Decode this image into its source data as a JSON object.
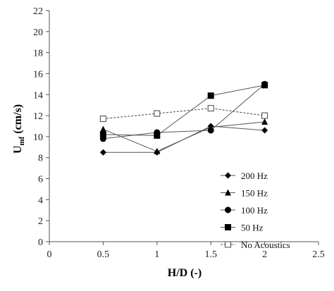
{
  "chart_data": {
    "type": "line",
    "xlabel": "H/D (-)",
    "ylabel_main": "U",
    "ylabel_sub": "mf",
    "ylabel_rest": " (cm/s)",
    "xlim": [
      0,
      2.5
    ],
    "ylim": [
      0,
      22
    ],
    "xticks": [
      0,
      0.5,
      1,
      1.5,
      2,
      2.5
    ],
    "xtick_labels": [
      "0",
      "0.5",
      "1",
      "1.5",
      "2",
      "2.5"
    ],
    "yticks": [
      0,
      2,
      4,
      6,
      8,
      10,
      12,
      14,
      16,
      18,
      20,
      22
    ],
    "ytick_labels": [
      "0",
      "2",
      "4",
      "6",
      "8",
      "10",
      "12",
      "14",
      "16",
      "18",
      "20",
      "22"
    ],
    "grid": false,
    "legend_position": "bottom-right",
    "series": [
      {
        "name": "200 Hz",
        "marker": "diamond",
        "line_style": "solid",
        "color": "#000000",
        "x": [
          0.5,
          1,
          1.5,
          2
        ],
        "y": [
          8.5,
          8.5,
          11.0,
          10.6
        ]
      },
      {
        "name": "150 Hz",
        "marker": "triangle",
        "line_style": "solid",
        "color": "#000000",
        "x": [
          0.5,
          1,
          1.5,
          2
        ],
        "y": [
          10.7,
          8.6,
          10.9,
          11.4
        ]
      },
      {
        "name": "100 Hz",
        "marker": "circle",
        "line_style": "solid",
        "color": "#000000",
        "x": [
          0.5,
          1,
          1.5,
          2
        ],
        "y": [
          9.8,
          10.4,
          10.6,
          15.0
        ]
      },
      {
        "name": "50 Hz",
        "marker": "square",
        "line_style": "solid",
        "color": "#000000",
        "x": [
          0.5,
          1,
          1.5,
          2
        ],
        "y": [
          10.2,
          10.1,
          13.9,
          14.9
        ]
      },
      {
        "name": "No Acoustics",
        "marker": "open-square",
        "line_style": "dashed",
        "color": "#000000",
        "x": [
          0.5,
          1,
          1.5,
          2
        ],
        "y": [
          11.7,
          12.2,
          12.7,
          12.0
        ]
      }
    ]
  }
}
